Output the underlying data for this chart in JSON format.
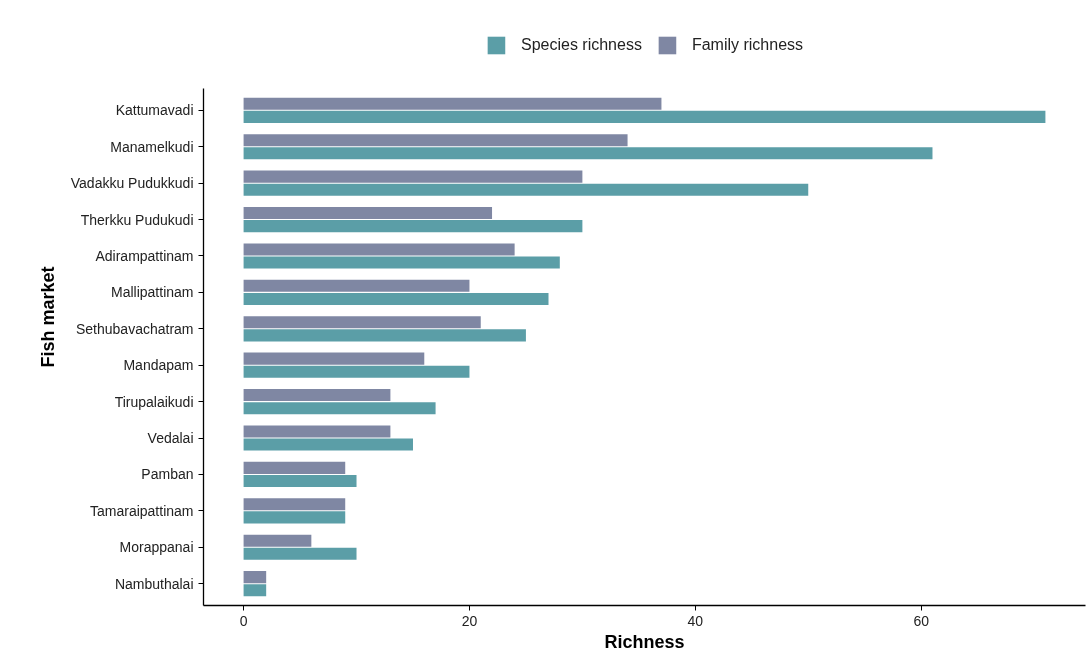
{
  "chart_data": {
    "type": "bar",
    "orientation": "horizontal",
    "xlabel": "Richness",
    "ylabel": "Fish market",
    "categories": [
      "Kattumavadi",
      "Manamelkudi",
      "Vadakku Pudukkudi",
      "Therkku Pudukudi",
      "Adirampattinam",
      "Mallipattinam",
      "Sethubavachatram",
      "Mandapam",
      "Tirupalaikudi",
      "Vedalai",
      "Pamban",
      "Tamaraipattinam",
      "Morappanai",
      "Nambuthalai"
    ],
    "series": [
      {
        "name": "Species richness",
        "color": "#5b9ea7",
        "values": [
          71,
          61,
          50,
          30,
          28,
          27,
          25,
          20,
          17,
          15,
          10,
          9,
          10,
          2
        ]
      },
      {
        "name": "Family richness",
        "color": "#7f87a3",
        "values": [
          37,
          34,
          30,
          22,
          24,
          20,
          21,
          16,
          13,
          13,
          9,
          9,
          6,
          2
        ]
      }
    ],
    "xlim": [
      -3.55,
      74.55
    ],
    "xticks": [
      0,
      20,
      40,
      60
    ],
    "legend": "top",
    "grid": false
  }
}
